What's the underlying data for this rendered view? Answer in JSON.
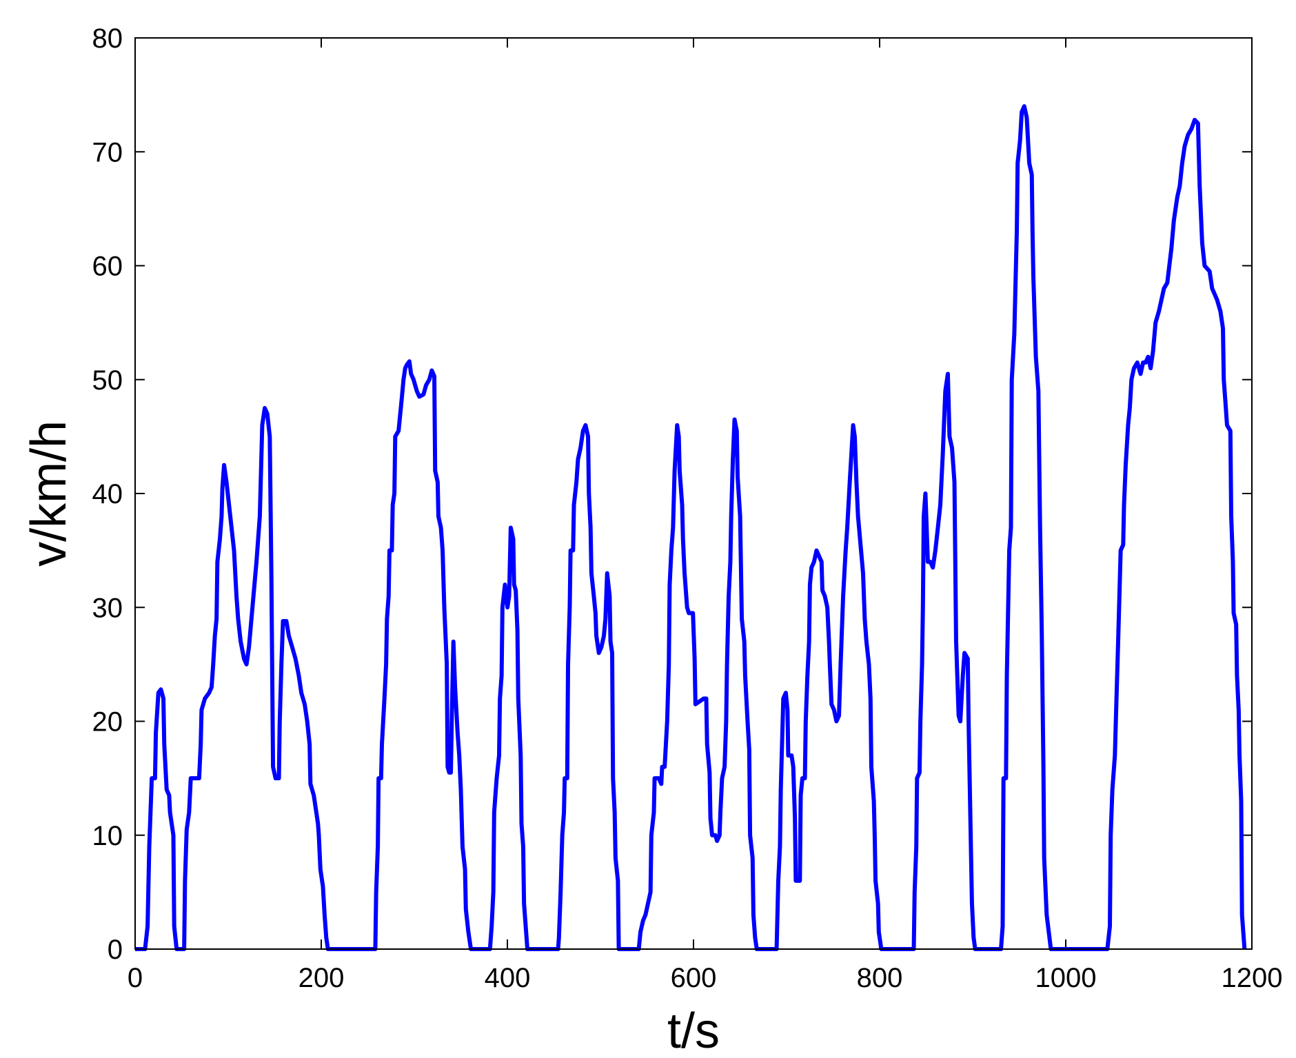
{
  "chart_data": {
    "type": "line",
    "xlabel": "t/s",
    "ylabel": "v/km/h",
    "xlim": [
      0,
      1200
    ],
    "ylim": [
      0,
      80
    ],
    "xticks": [
      0,
      200,
      400,
      600,
      800,
      1000,
      1200
    ],
    "yticks": [
      0,
      10,
      20,
      30,
      40,
      50,
      60,
      70,
      80
    ],
    "grid": false,
    "color": "#0000ff",
    "x": [
      0,
      10.7,
      13.4,
      15.2,
      17.9,
      21.4,
      22.3,
      25,
      27.7,
      30.4,
      31.3,
      33.9,
      36.6,
      37.5,
      39.3,
      41.1,
      42,
      44.6,
      52.7,
      53.6,
      55.4,
      58,
      59.8,
      68.8,
      70.5,
      71.4,
      75,
      79.5,
      82.2,
      83.9,
      85.7,
      87.5,
      88.4,
      91.1,
      92.9,
      93.8,
      95.6,
      98.2,
      100.9,
      103.6,
      106.3,
      108.9,
      110.7,
      113.4,
      117,
      119.7,
      122.3,
      125,
      127.7,
      130.4,
      134,
      136.6,
      139.3,
      142,
      144.7,
      146.4,
      148.2,
      150.9,
      154.5,
      155.4,
      157.2,
      158.9,
      162.5,
      165.2,
      168.8,
      172.3,
      175.9,
      178.6,
      182.2,
      184.9,
      187.5,
      188.4,
      192,
      193.8,
      196.5,
      197.4,
      199.1,
      201.8,
      203.6,
      205.4,
      207.2,
      258.1,
      259,
      260.8,
      261.6,
      264.3,
      265.2,
      267.9,
      269.7,
      270.6,
      272.4,
      273.3,
      275.9,
      276.8,
      278.6,
      279.5,
      283.1,
      284.9,
      286.7,
      288.4,
      290.2,
      292,
      294.7,
      296.5,
      299.2,
      302.7,
      305.4,
      309.9,
      312.6,
      316.1,
      318.8,
      321.5,
      322.4,
      325.1,
      325.9,
      328.6,
      330.4,
      332.2,
      334.9,
      335.8,
      337.5,
      339.3,
      340.2,
      342,
      343.8,
      346.5,
      348.3,
      350,
      351.8,
      354.5,
      355.4,
      358.1,
      360.8,
      381.3,
      383.1,
      384.9,
      385.8,
      387.6,
      388.5,
      391.1,
      392,
      393.8,
      394.7,
      397.4,
      400.1,
      401.9,
      403.6,
      406.3,
      407.2,
      409,
      410.8,
      411.7,
      414.3,
      415.2,
      417,
      417.9,
      420.6,
      421.5,
      454.5,
      455.4,
      457.2,
      459,
      460.8,
      461.6,
      464.3,
      465.2,
      467,
      467.9,
      470.6,
      471.5,
      474.2,
      475.9,
      478.6,
      481.3,
      484,
      486.7,
      487.6,
      489.4,
      490.3,
      492.9,
      494.7,
      495.6,
      498.3,
      501,
      503.7,
      505.4,
      507.2,
      509.9,
      510.8,
      512.6,
      513.5,
      515.3,
      516.2,
      518.8,
      519.7,
      541.2,
      543,
      545.8,
      548.4,
      551.1,
      553.8,
      554.7,
      557.4,
      558.2,
      562.7,
      565.4,
      566.3,
      569,
      571.7,
      573.5,
      574.4,
      576.2,
      578,
      579.7,
      582.4,
      584.2,
      585.1,
      587.8,
      588.7,
      590.4,
      593.1,
      595,
      599.4,
      601.2,
      602.1,
      607.4,
      611,
      613.7,
      614.6,
      617.3,
      618.2,
      620,
      623.5,
      625.3,
      628,
      628.9,
      630.7,
      633.4,
      635.1,
      636,
      637.8,
      639.6,
      640.5,
      642.3,
      644.1,
      646.5,
      647.4,
      650.1,
      651.9,
      654.6,
      655.5,
      658.1,
      659.9,
      660.8,
      663.5,
      664.4,
      666.2,
      668,
      689.3,
      691.1,
      692.9,
      693.8,
      696.5,
      699.2,
      701,
      701.8,
      705.4,
      707.2,
      709,
      709.9,
      714.3,
      715.2,
      717,
      719.7,
      720.6,
      722.4,
      724.2,
      725.1,
      726.8,
      729.5,
      732.2,
      734.9,
      737.6,
      738.5,
      741.1,
      743.8,
      745.6,
      746.5,
      748.3,
      751,
      753.6,
      756.3,
      758.1,
      760.8,
      763.5,
      765.2,
      767.9,
      771.5,
      773.3,
      775.1,
      776.8,
      779.5,
      782.2,
      784,
      785.8,
      788.5,
      790.2,
      791.1,
      793.8,
      794.7,
      795.6,
      798.3,
      799.1,
      801.8,
      836.7,
      837.6,
      839.4,
      840.2,
      842.9,
      843.8,
      845.6,
      846.5,
      847.4,
      849.2,
      850.1,
      851.8,
      854.5,
      857.2,
      859.9,
      862.6,
      865.2,
      867.9,
      870.6,
      873.3,
      875.1,
      877.8,
      880.4,
      882.2,
      884.9,
      886.7,
      889.4,
      891.2,
      894.7,
      895.6,
      897.4,
      899.2,
      901,
      902.7,
      930.4,
      932.2,
      933.1,
      935.8,
      936.7,
      939.3,
      941.1,
      942,
      944.7,
      945.6,
      947.4,
      948.3,
      950.9,
      952.7,
      955.4,
      958.1,
      960.8,
      963.5,
      964.3,
      965.2,
      967.9,
      970.6,
      972.4,
      974.2,
      976,
      976.8,
      979.5,
      984,
      1044.7,
      1047.4,
      1048.3,
      1050.1,
      1052.8,
      1054.5,
      1056.3,
      1059,
      1061.7,
      1062.6,
      1064.4,
      1067,
      1068.8,
      1070.6,
      1073.3,
      1076.9,
      1080.4,
      1083.1,
      1085.8,
      1088.5,
      1091.2,
      1093.8,
      1096.5,
      1100.1,
      1102.8,
      1105.5,
      1109.1,
      1113.5,
      1116.2,
      1119.8,
      1122.5,
      1125.1,
      1127.8,
      1131.4,
      1135,
      1138.5,
      1142.1,
      1143.9,
      1146.6,
      1149.2,
      1154.6,
      1157.3,
      1160,
      1162.6,
      1166.2,
      1168.9,
      1169.8,
      1171.6,
      1173.3,
      1176.9,
      1177.8,
      1179.6,
      1180.4,
      1183.1,
      1184,
      1185.8,
      1186.7,
      1188.5,
      1189.4,
      1192.1
    ],
    "values": [
      0,
      0,
      2,
      9,
      15,
      15,
      19,
      22.5,
      22.8,
      22,
      18,
      14,
      13.5,
      12,
      11,
      10,
      2,
      0,
      0,
      6,
      10.5,
      12,
      15,
      15,
      18,
      21,
      22,
      22.5,
      23,
      25,
      27.5,
      29,
      34,
      36,
      38,
      40.5,
      42.5,
      41,
      39,
      37,
      35,
      31,
      29,
      27,
      25.5,
      25,
      26.5,
      29,
      31.5,
      34,
      38,
      46,
      47.5,
      47,
      45,
      33,
      16,
      15,
      15,
      20,
      25,
      28.8,
      28.8,
      27.5,
      26.5,
      25.5,
      24,
      22.5,
      21.5,
      20,
      18,
      14.5,
      13.5,
      12.5,
      11,
      10,
      7,
      5.5,
      3,
      1,
      0,
      0,
      5,
      9,
      15,
      15,
      18,
      22,
      25,
      29,
      31,
      35,
      35,
      39,
      40,
      45,
      45.5,
      47,
      48.5,
      50,
      51,
      51.3,
      51.6,
      50.5,
      50,
      49,
      48.5,
      48.7,
      49.5,
      50,
      50.8,
      50.3,
      42,
      41,
      38,
      37,
      35,
      30,
      25,
      16,
      15.5,
      15.5,
      20,
      27,
      23,
      19,
      17,
      14,
      9,
      7,
      3.5,
      1.5,
      0,
      0,
      2,
      5,
      12,
      14,
      15,
      17,
      22,
      24,
      30,
      32,
      30,
      31,
      37,
      36,
      32,
      31.5,
      28,
      22,
      17,
      11,
      9,
      4,
      1,
      0,
      0,
      1,
      5,
      10,
      12,
      15,
      15,
      25,
      30,
      35,
      35,
      39,
      41,
      43,
      44,
      45.5,
      46,
      45,
      40,
      37,
      33,
      31,
      29.5,
      27.5,
      26,
      26.5,
      27.5,
      29,
      33,
      31,
      27,
      26,
      15,
      12,
      8,
      6,
      0,
      0,
      1.5,
      2.5,
      3,
      4,
      5,
      10,
      12,
      15,
      15,
      14.5,
      16,
      16,
      20,
      25,
      32,
      35,
      37,
      42,
      46,
      45,
      42,
      39,
      36,
      33,
      30,
      29.5,
      29.5,
      25.5,
      21.5,
      21.8,
      22,
      22,
      18,
      15.5,
      11.5,
      10,
      10,
      9.5,
      10,
      12,
      15,
      16,
      20,
      25,
      31,
      34,
      38,
      43,
      46.5,
      45.5,
      41.5,
      38,
      29,
      27,
      24,
      20,
      17.5,
      10,
      8,
      3,
      1,
      0,
      0,
      6,
      9,
      14,
      22,
      22.5,
      21,
      17,
      17,
      16,
      11.5,
      6,
      6,
      13.5,
      15,
      15,
      20,
      24,
      27,
      32,
      33.5,
      34,
      35,
      34.5,
      34,
      31.5,
      31,
      30,
      27,
      25,
      21.5,
      21,
      20,
      20.5,
      25,
      31,
      35,
      37,
      41,
      46,
      45,
      41,
      38,
      35.5,
      33,
      29,
      27,
      25,
      22,
      16,
      13,
      10,
      6,
      4,
      1.5,
      0,
      0,
      5,
      9,
      15,
      15.5,
      20,
      25,
      30,
      38,
      40,
      38,
      34,
      34,
      33.5,
      35,
      37,
      39,
      43.5,
      49,
      50.5,
      45,
      44,
      41,
      27,
      20.5,
      20,
      24,
      26,
      25.5,
      20,
      12,
      4,
      1,
      0,
      0,
      2,
      15,
      15,
      24,
      35,
      37,
      50,
      54,
      57,
      63,
      69,
      71,
      73.5,
      74,
      73,
      69,
      68,
      63,
      59,
      52,
      49,
      37,
      28,
      16,
      8,
      3,
      0,
      0,
      2,
      10,
      14,
      17,
      22,
      27,
      35,
      35.5,
      39,
      42.5,
      46,
      47.5,
      50,
      51,
      51.5,
      50.5,
      51.5,
      51.5,
      52,
      51,
      52.5,
      55,
      56,
      57,
      58,
      58.5,
      61.5,
      64,
      66,
      67,
      69,
      70.5,
      71.5,
      72,
      72.8,
      72.5,
      67,
      62,
      60,
      59.5,
      58,
      57.5,
      57,
      56,
      54.5,
      50,
      48,
      46,
      45.5,
      38,
      34,
      29.5,
      28.5,
      24,
      21,
      17,
      13,
      3,
      0
    ]
  }
}
